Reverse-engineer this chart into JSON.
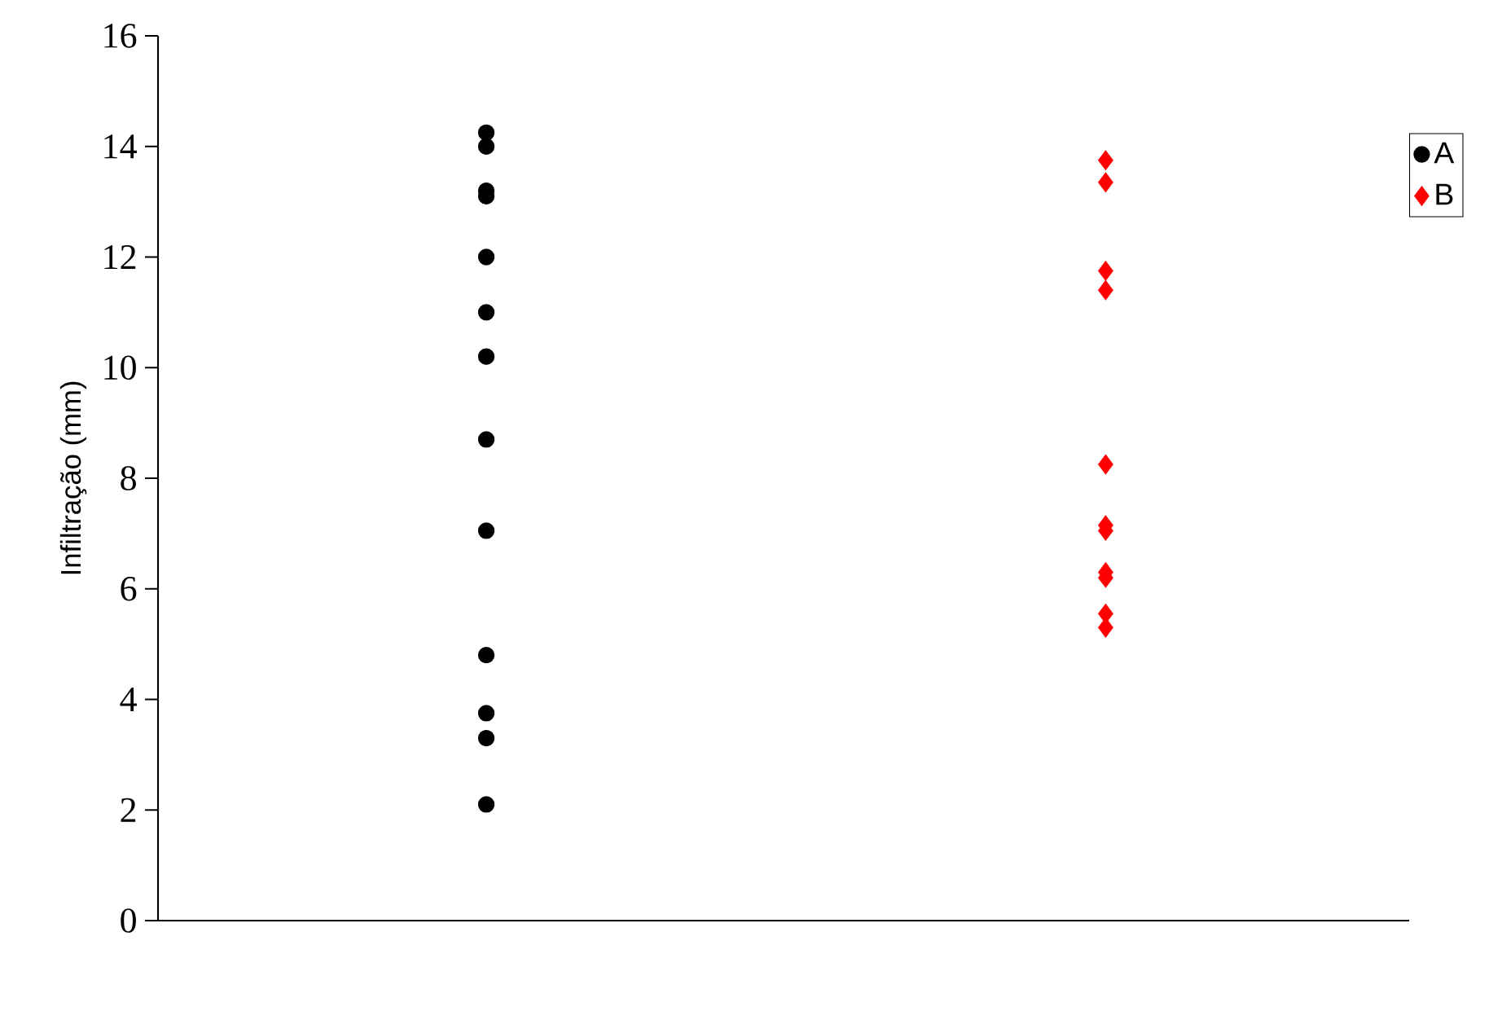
{
  "chart_data": {
    "type": "scatter",
    "ylabel": "Infiltração (mm)",
    "categories": [
      null,
      null
    ],
    "ylim": [
      0,
      16
    ],
    "yticks": [
      0,
      2,
      4,
      6,
      8,
      10,
      12,
      14,
      16
    ],
    "tick_labels": "y",
    "legend": "top right",
    "series": [
      {
        "name": "A",
        "color": "#000000",
        "marker": "circle",
        "values": [
          14.25,
          null
        ]
      },
      {
        "color": "#000000",
        "marker": "circle",
        "values": [
          14.0,
          null
        ]
      },
      {
        "color": "#000000",
        "marker": "circle",
        "values": [
          13.2,
          null
        ]
      },
      {
        "color": "#000000",
        "marker": "circle",
        "values": [
          13.1,
          null
        ]
      },
      {
        "color": "#000000",
        "marker": "circle",
        "values": [
          12.0,
          null
        ]
      },
      {
        "color": "#000000",
        "marker": "circle",
        "values": [
          11.0,
          null
        ]
      },
      {
        "color": "#000000",
        "marker": "circle",
        "values": [
          10.2,
          null
        ]
      },
      {
        "color": "#000000",
        "marker": "circle",
        "values": [
          8.7,
          null
        ]
      },
      {
        "color": "#000000",
        "marker": "circle",
        "values": [
          7.05,
          null
        ]
      },
      {
        "color": "#000000",
        "marker": "circle",
        "values": [
          4.8,
          null
        ]
      },
      {
        "color": "#000000",
        "marker": "circle",
        "values": [
          3.75,
          null
        ]
      },
      {
        "color": "#000000",
        "marker": "circle",
        "values": [
          3.3,
          null
        ]
      },
      {
        "color": "#000000",
        "marker": "circle",
        "values": [
          2.1,
          null
        ]
      },
      {
        "name": "B",
        "color": "#ff0000",
        "marker": "diamond",
        "values": [
          null,
          13.75
        ]
      },
      {
        "color": "#ff0000",
        "marker": "diamond",
        "values": [
          null,
          13.35
        ]
      },
      {
        "color": "#ff0000",
        "marker": "diamond",
        "values": [
          null,
          11.75
        ]
      },
      {
        "color": "#ff0000",
        "marker": "diamond",
        "values": [
          null,
          11.4
        ]
      },
      {
        "color": "#ff0000",
        "marker": "diamond",
        "values": [
          null,
          8.25
        ]
      },
      {
        "color": "#ff0000",
        "marker": "diamond",
        "values": [
          null,
          7.15
        ]
      },
      {
        "color": "#ff0000",
        "marker": "diamond",
        "values": [
          null,
          7.05
        ]
      },
      {
        "color": "#ff0000",
        "marker": "diamond",
        "values": [
          null,
          6.3
        ]
      },
      {
        "color": "#ff0000",
        "marker": "diamond",
        "values": [
          null,
          6.2
        ]
      },
      {
        "color": "#ff0000",
        "marker": "diamond",
        "values": [
          null,
          5.55
        ]
      },
      {
        "color": "#ff0000",
        "marker": "diamond",
        "values": [
          null,
          5.3
        ]
      }
    ]
  }
}
